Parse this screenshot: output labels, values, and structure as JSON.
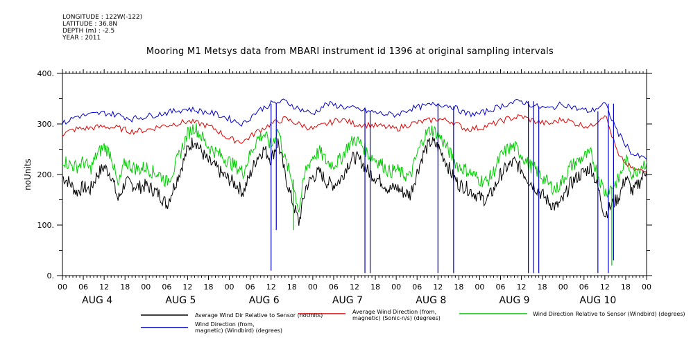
{
  "header": {
    "longitude": "LONGITUDE : 122W(-122)",
    "latitude": "LATITUDE : 36.8N",
    "depth": "DEPTH (m) : -2.5",
    "year": "YEAR : 2011"
  },
  "chart_data": {
    "type": "line",
    "title": "Mooring M1 Metsys data from MBARI instrument id 1396 at original sampling intervals",
    "ylabel": "noUnits",
    "ylim": [
      0,
      400
    ],
    "yticks": [
      0,
      100,
      200,
      300,
      400
    ],
    "ytick_labels": [
      "0.",
      "100.",
      "200.",
      "300.",
      "400."
    ],
    "xlim_hours": [
      0,
      168
    ],
    "hour_tick_labels": [
      "00",
      "06",
      "12",
      "18"
    ],
    "day_labels": [
      "AUG  4",
      "AUG  5",
      "AUG  6",
      "AUG  7",
      "AUG  8",
      "AUG  9",
      "AUG 10"
    ],
    "grid": false,
    "legend_position": "bottom",
    "series": [
      {
        "name": "Average Wind Dir Relative to Sensor (noUnits)",
        "color": "#000000",
        "x": [
          0,
          2,
          4,
          6,
          8,
          10,
          12,
          14,
          16,
          18,
          20,
          22,
          24,
          26,
          28,
          30,
          32,
          34,
          36,
          38,
          40,
          42,
          44,
          46,
          48,
          50,
          52,
          54,
          56,
          58,
          60,
          62,
          64,
          66,
          68,
          70,
          72,
          74,
          76,
          78,
          80,
          82,
          84,
          86,
          88,
          90,
          92,
          94,
          96,
          98,
          100,
          102,
          104,
          106,
          108,
          110,
          112,
          114,
          116,
          118,
          120,
          122,
          124,
          126,
          128,
          130,
          132,
          134,
          136,
          138,
          140,
          142,
          144,
          146,
          148,
          150,
          152,
          154,
          156,
          158,
          160,
          162,
          164,
          166,
          168
        ],
        "values": [
          195,
          185,
          165,
          175,
          170,
          200,
          215,
          200,
          150,
          185,
          180,
          175,
          178,
          170,
          160,
          140,
          175,
          210,
          250,
          270,
          245,
          225,
          215,
          200,
          190,
          180,
          165,
          200,
          235,
          250,
          230,
          265,
          200,
          150,
          105,
          175,
          195,
          205,
          185,
          180,
          190,
          220,
          235,
          225,
          205,
          195,
          185,
          170,
          175,
          165,
          160,
          205,
          245,
          265,
          255,
          230,
          200,
          180,
          175,
          165,
          155,
          150,
          170,
          200,
          215,
          225,
          210,
          190,
          175,
          160,
          145,
          135,
          150,
          180,
          195,
          205,
          215,
          175,
          120,
          140,
          155,
          195,
          165,
          185,
          210
        ]
      },
      {
        "name": "Average Wind Direction (from, magnetic) (Sonic-n/s) (degrees)",
        "color": "#e00000",
        "x": [
          0,
          4,
          8,
          12,
          16,
          20,
          24,
          28,
          32,
          36,
          40,
          44,
          48,
          52,
          56,
          60,
          64,
          68,
          72,
          76,
          80,
          84,
          88,
          92,
          96,
          100,
          104,
          108,
          112,
          116,
          120,
          124,
          128,
          132,
          136,
          140,
          144,
          148,
          152,
          156,
          160,
          164,
          168
        ],
        "values": [
          280,
          290,
          292,
          295,
          292,
          285,
          288,
          295,
          300,
          305,
          300,
          290,
          270,
          265,
          285,
          300,
          310,
          300,
          290,
          300,
          310,
          300,
          298,
          295,
          290,
          300,
          305,
          310,
          305,
          290,
          292,
          300,
          310,
          315,
          305,
          300,
          310,
          300,
          295,
          320,
          235,
          210,
          205
        ]
      },
      {
        "name": "Wind Direction Relative to Sensor (Windbird) (degrees)",
        "color": "#00cc00",
        "x": [
          0,
          2,
          4,
          6,
          8,
          10,
          12,
          14,
          16,
          18,
          20,
          22,
          24,
          26,
          28,
          30,
          32,
          34,
          36,
          38,
          40,
          42,
          44,
          46,
          48,
          50,
          52,
          54,
          56,
          58,
          60,
          62,
          64,
          66,
          68,
          70,
          72,
          74,
          76,
          78,
          80,
          82,
          84,
          86,
          88,
          90,
          92,
          94,
          96,
          98,
          100,
          102,
          104,
          106,
          108,
          110,
          112,
          114,
          116,
          118,
          120,
          122,
          124,
          126,
          128,
          130,
          132,
          134,
          136,
          138,
          140,
          142,
          144,
          146,
          148,
          150,
          152,
          154,
          156,
          158,
          160,
          162,
          164,
          166,
          168
        ],
        "values": [
          230,
          220,
          215,
          225,
          210,
          240,
          255,
          240,
          175,
          225,
          215,
          210,
          215,
          205,
          200,
          185,
          210,
          245,
          280,
          295,
          275,
          255,
          245,
          235,
          225,
          215,
          205,
          240,
          270,
          280,
          255,
          290,
          230,
          190,
          130,
          210,
          235,
          245,
          225,
          220,
          230,
          255,
          270,
          260,
          240,
          230,
          220,
          205,
          210,
          200,
          195,
          240,
          275,
          290,
          280,
          260,
          235,
          215,
          210,
          200,
          190,
          185,
          205,
          235,
          250,
          255,
          240,
          220,
          210,
          195,
          180,
          170,
          190,
          215,
          225,
          235,
          240,
          200,
          165,
          175,
          190,
          230,
          200,
          215,
          225
        ]
      },
      {
        "name": "Wind Direction (from, magnetic) (Windbird) (degrees)",
        "color": "#0000cc",
        "x": [
          0,
          4,
          8,
          12,
          16,
          20,
          24,
          28,
          32,
          36,
          40,
          44,
          48,
          52,
          56,
          60,
          64,
          68,
          72,
          76,
          80,
          84,
          88,
          92,
          96,
          100,
          104,
          108,
          112,
          116,
          120,
          124,
          128,
          132,
          136,
          140,
          144,
          148,
          152,
          156,
          160,
          164,
          168
        ],
        "values": [
          300,
          315,
          318,
          322,
          318,
          310,
          315,
          320,
          325,
          330,
          325,
          320,
          310,
          300,
          325,
          340,
          345,
          330,
          320,
          340,
          335,
          330,
          325,
          320,
          318,
          330,
          335,
          340,
          335,
          320,
          320,
          330,
          340,
          345,
          335,
          330,
          340,
          330,
          325,
          340,
          280,
          240,
          230
        ]
      }
    ],
    "spikes": [
      {
        "series": 3,
        "hour": 60,
        "low": 10
      },
      {
        "series": 3,
        "hour": 61.5,
        "low": 90
      },
      {
        "series": 3,
        "hour": 87,
        "low": 5
      },
      {
        "series": 3,
        "hour": 88.5,
        "low": 5
      },
      {
        "series": 3,
        "hour": 108,
        "low": 5
      },
      {
        "series": 3,
        "hour": 112.5,
        "low": 5
      },
      {
        "series": 3,
        "hour": 134,
        "low": 5
      },
      {
        "series": 3,
        "hour": 135.5,
        "low": 5
      },
      {
        "series": 3,
        "hour": 137,
        "low": 5
      },
      {
        "series": 3,
        "hour": 154,
        "low": 5
      },
      {
        "series": 3,
        "hour": 157,
        "low": 5
      },
      {
        "series": 3,
        "hour": 158.5,
        "low": 30
      },
      {
        "series": 2,
        "hour": 66.5,
        "low": 90
      },
      {
        "series": 2,
        "hour": 158,
        "low": 20
      }
    ]
  }
}
